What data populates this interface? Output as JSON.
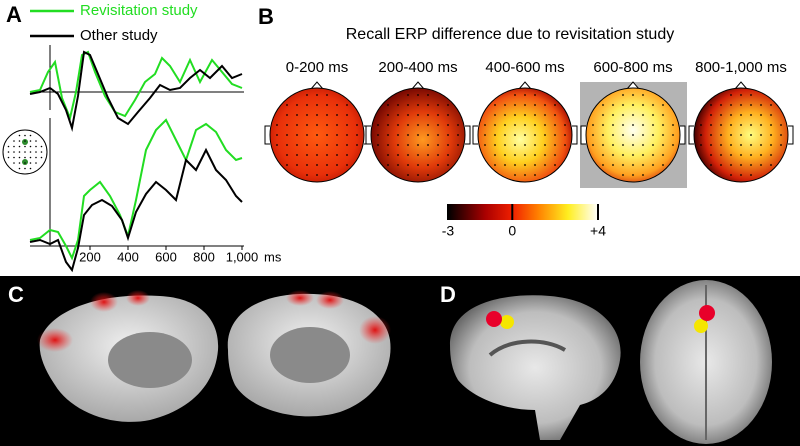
{
  "panel_a": {
    "label": "A",
    "legend": [
      {
        "name": "Revisitation study",
        "color": "#22dd22"
      },
      {
        "name": "Other study",
        "color": "#000000"
      }
    ],
    "xticks": [
      200,
      400,
      600,
      800,
      {
        "value": 1000,
        "label": "1,000"
      }
    ],
    "x_unit": "ms"
  },
  "panel_b": {
    "label": "B",
    "title": "Recall ERP difference due to revisitation study",
    "windows": [
      "0-200 ms",
      "200-400 ms",
      "400-600 ms",
      "600-800 ms",
      "800-1,000 ms"
    ],
    "colorbar_ticks": [
      -3,
      0,
      {
        "value": 4,
        "label": "+4"
      }
    ]
  },
  "panel_c": {
    "label": "C"
  },
  "panel_d": {
    "label": "D"
  }
}
